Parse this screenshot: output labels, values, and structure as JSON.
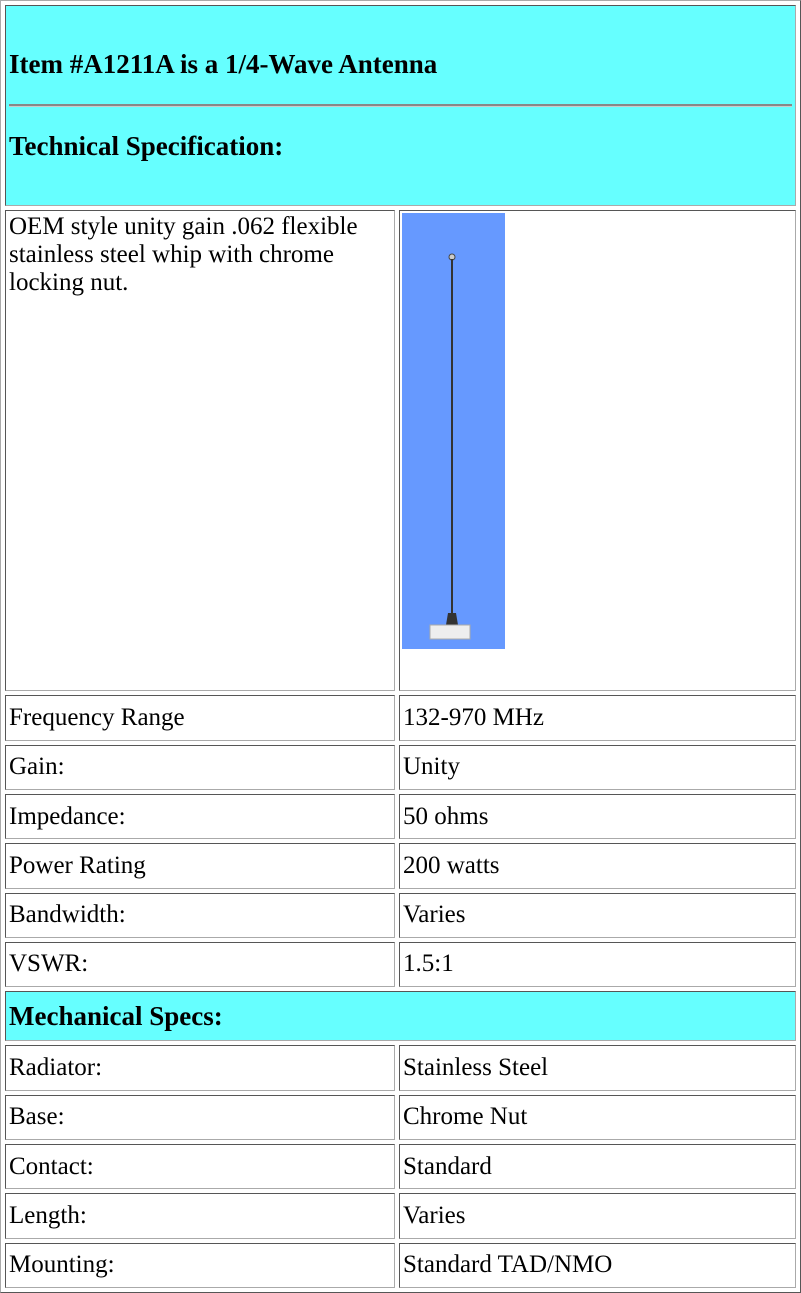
{
  "header": {
    "title": "Item #A1211A is a 1/4-Wave Antenna",
    "technical_heading": "Technical Specification:"
  },
  "description": "OEM style unity gain .062 flexible stainless steel whip with chrome locking nut.",
  "technical_specs": [
    [
      "Frequency Range",
      "132-970 MHz"
    ],
    [
      "Gain:",
      "Unity"
    ],
    [
      "Impedance:",
      "50 ohms"
    ],
    [
      "Power Rating",
      "200 watts"
    ],
    [
      "Bandwidth:",
      "Varies"
    ],
    [
      "VSWR:",
      "1.5:1"
    ]
  ],
  "mechanical_heading": "Mechanical Specs:",
  "mechanical_specs": [
    [
      "Radiator:",
      "Stainless Steel"
    ],
    [
      "Base:",
      "Chrome Nut"
    ],
    [
      "Contact:",
      "Standard"
    ],
    [
      "Length:",
      "Varies"
    ],
    [
      "Mounting:",
      "Standard TAD/NMO"
    ]
  ]
}
